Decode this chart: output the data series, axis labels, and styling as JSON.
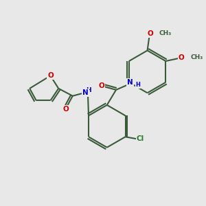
{
  "bg_color": "#e8e8e8",
  "bond_color": "#3a5a3a",
  "O_color": "#cc0000",
  "N_color": "#0000cc",
  "Cl_color": "#2d7a2d",
  "C_color": "#3a5a3a",
  "lw": 1.5,
  "fs": 7.5,
  "xlim": [
    0,
    10
  ],
  "ylim": [
    0,
    10
  ]
}
